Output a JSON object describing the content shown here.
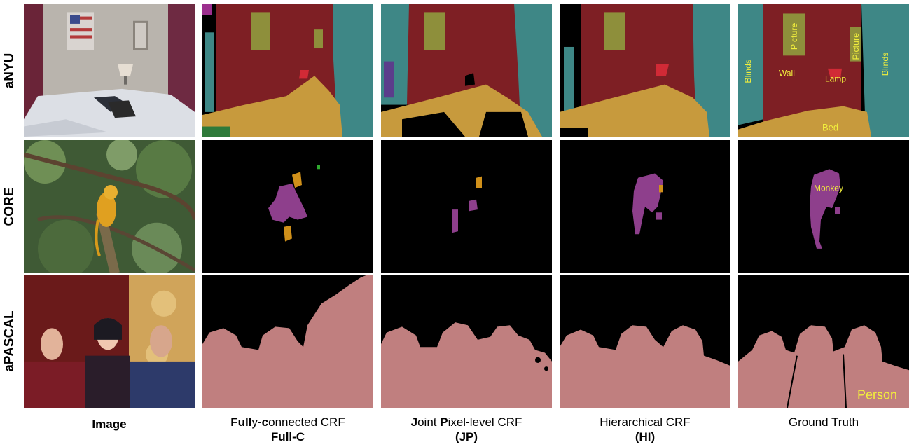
{
  "rows": [
    {
      "label": "aNYU"
    },
    {
      "label": "CORE"
    },
    {
      "label": "aPASCAL"
    }
  ],
  "columns": [
    {
      "caption_line1_bold_a": "",
      "caption_line1_normal_a": "",
      "caption_line1_bold_b": "",
      "caption_line1_normal_b": "",
      "caption_line1": "Image",
      "caption_line2": ""
    },
    {
      "caption_line1_bold_a": "Full",
      "caption_line1_normal_a": "y-",
      "caption_line1_bold_b": "c",
      "caption_line1_normal_b": "onnected CRF",
      "caption_line1": "",
      "caption_line2": "Full-C"
    },
    {
      "caption_line1_bold_a": "J",
      "caption_line1_normal_a": "oint ",
      "caption_line1_bold_b": "P",
      "caption_line1_normal_b": "ixel-level CRF",
      "caption_line1": "",
      "caption_line2": "(JP)"
    },
    {
      "caption_line1_bold_a": "",
      "caption_line1_normal_a": "",
      "caption_line1_bold_b": "",
      "caption_line1_normal_b": "",
      "caption_line1": "Hierarchical CRF",
      "caption_line2": "(HI)"
    },
    {
      "caption_line1_bold_a": "",
      "caption_line1_normal_a": "",
      "caption_line1_bold_b": "",
      "caption_line1_normal_b": "",
      "caption_line1": "Ground Truth",
      "caption_line2": ""
    }
  ],
  "ground_truth_labels": {
    "nyu": [
      "Blinds",
      "Picture",
      "Picture",
      "Blinds",
      "Wall",
      "Lamp",
      "Bed"
    ],
    "core": [
      "Monkey"
    ],
    "pascal": [
      "Person"
    ]
  },
  "colors": {
    "wall": "#7e1f24",
    "picture": "#8e8f3b",
    "blinds": "#3e8786",
    "bed": "#c79a3d",
    "lamp": "#d12a36",
    "monkey": "#8e3f8c",
    "monkey_error": "#d0901a",
    "person": "#c07f7f",
    "background": "#000000",
    "label_text": "#f2ef3c"
  }
}
